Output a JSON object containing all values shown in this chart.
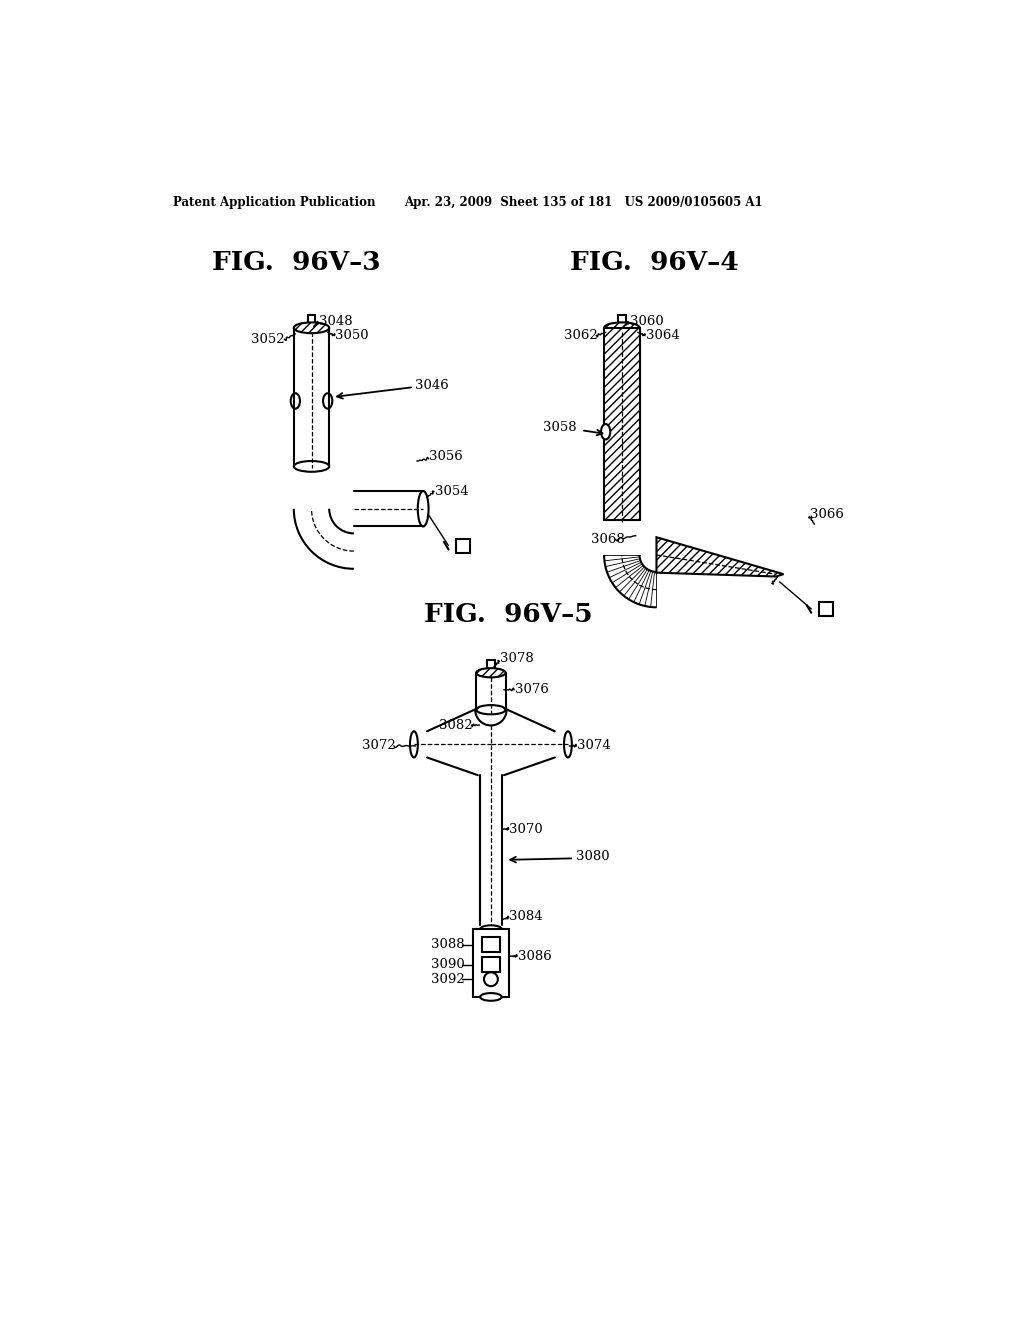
{
  "header_left": "Patent Application Publication",
  "header_right": "Apr. 23, 2009  Sheet 135 of 181   US 2009/0105605 A1",
  "fig1_title": "FIG.  96V–3",
  "fig2_title": "FIG.  96V–4",
  "fig3_title": "FIG.  96V–5",
  "background_color": "#ffffff",
  "line_color": "#000000"
}
